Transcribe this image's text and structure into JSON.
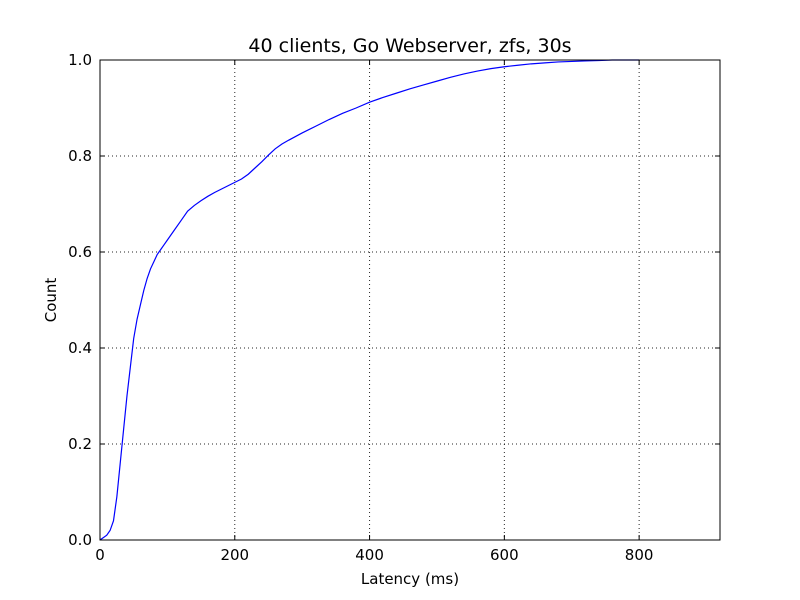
{
  "chart_data": {
    "type": "line",
    "title": "40 clients, Go Webserver, zfs, 30s",
    "xlabel": "Latency (ms)",
    "ylabel": "Count",
    "xlim": [
      0,
      920
    ],
    "ylim": [
      0,
      1.0
    ],
    "grid": true,
    "x_ticks": [
      0,
      200,
      400,
      600,
      800
    ],
    "x_tick_labels": [
      "0",
      "200",
      "400",
      "600",
      "800"
    ],
    "y_ticks": [
      0.0,
      0.2,
      0.4,
      0.6,
      0.8,
      1.0
    ],
    "y_tick_labels": [
      "0.0",
      "0.2",
      "0.4",
      "0.6",
      "0.8",
      "1.0"
    ],
    "series": [
      {
        "color": "#0000ff",
        "x": [
          0,
          10,
          15,
          20,
          25,
          30,
          35,
          40,
          45,
          50,
          55,
          60,
          65,
          70,
          75,
          80,
          85,
          90,
          95,
          100,
          110,
          120,
          130,
          140,
          150,
          160,
          170,
          180,
          190,
          200,
          210,
          220,
          230,
          240,
          250,
          260,
          270,
          280,
          300,
          320,
          340,
          360,
          380,
          400,
          420,
          440,
          460,
          480,
          500,
          520,
          540,
          560,
          580,
          600,
          620,
          640,
          660,
          680,
          700,
          720,
          740,
          760,
          780,
          800
        ],
        "y": [
          0.0,
          0.01,
          0.02,
          0.04,
          0.09,
          0.16,
          0.23,
          0.3,
          0.36,
          0.42,
          0.46,
          0.49,
          0.52,
          0.545,
          0.565,
          0.58,
          0.595,
          0.605,
          0.615,
          0.625,
          0.645,
          0.665,
          0.685,
          0.697,
          0.707,
          0.716,
          0.724,
          0.731,
          0.738,
          0.745,
          0.752,
          0.762,
          0.775,
          0.788,
          0.802,
          0.815,
          0.825,
          0.833,
          0.848,
          0.862,
          0.876,
          0.889,
          0.9,
          0.912,
          0.922,
          0.931,
          0.94,
          0.948,
          0.956,
          0.964,
          0.971,
          0.977,
          0.982,
          0.986,
          0.989,
          0.992,
          0.994,
          0.996,
          0.997,
          0.998,
          0.999,
          1.0,
          1.0,
          1.0
        ]
      }
    ]
  }
}
